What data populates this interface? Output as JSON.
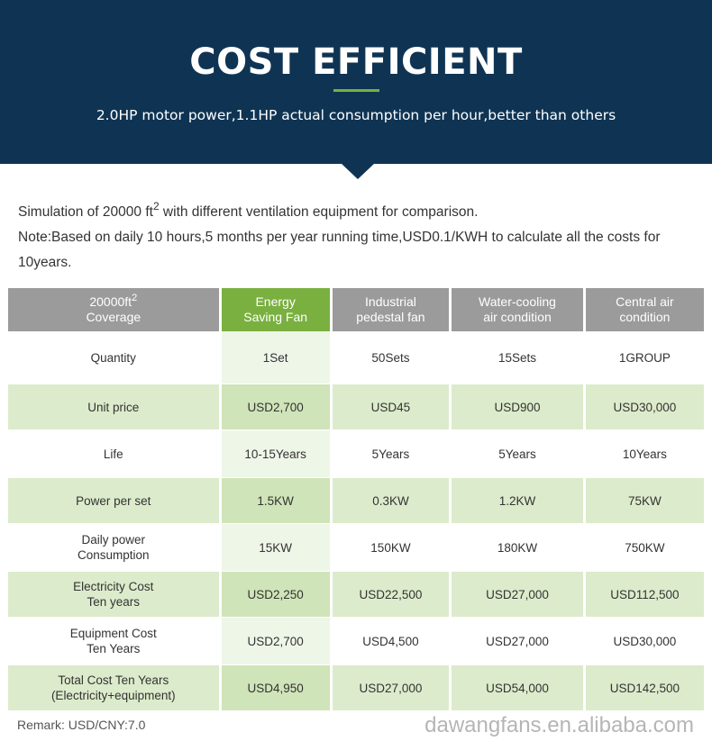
{
  "header": {
    "title": "COST EFFICIENT",
    "subtitle": "2.0HP motor power,1.1HP actual consumption per hour,better than others"
  },
  "intro": {
    "line1_pre": "Simulation of 20000 ft",
    "line1_sup": "2",
    "line1_post": " with different ventilation equipment for comparison.",
    "note": "Note:Based on daily 10 hours,5 months per year running time,USD0.1/KWH to calculate all the costs for 10years."
  },
  "table": {
    "headers": [
      {
        "l1": "20000ft",
        "sup": "2",
        "l2": "Coverage"
      },
      {
        "l1": "Energy",
        "l2": "Saving Fan"
      },
      {
        "l1": "Industrial",
        "l2": "pedestal fan"
      },
      {
        "l1": "Water-cooling",
        "l2": "air condition"
      },
      {
        "l1": "Central air",
        "l2": "condition"
      }
    ],
    "rows": [
      {
        "label1": "Quantity",
        "label2": "",
        "values": [
          "1Set",
          "50Sets",
          "15Sets",
          "1GROUP"
        ]
      },
      {
        "label1": "Unit price",
        "label2": "",
        "values": [
          "USD2,700",
          "USD45",
          "USD900",
          "USD30,000"
        ]
      },
      {
        "label1": "Life",
        "label2": "",
        "values": [
          "10-15Years",
          "5Years",
          "5Years",
          "10Years"
        ]
      },
      {
        "label1": "Power per set",
        "label2": "",
        "values": [
          "1.5KW",
          "0.3KW",
          "1.2KW",
          "75KW"
        ]
      },
      {
        "label1": "Daily power",
        "label2": "Consumption",
        "values": [
          "15KW",
          "150KW",
          "180KW",
          "750KW"
        ]
      },
      {
        "label1": "Electricity Cost",
        "label2": "Ten years",
        "values": [
          "USD2,250",
          "USD22,500",
          "USD27,000",
          "USD112,500"
        ]
      },
      {
        "label1": "Equipment Cost",
        "label2": "Ten Years",
        "values": [
          "USD2,700",
          "USD4,500",
          "USD27,000",
          "USD30,000"
        ]
      },
      {
        "label1": "Total Cost Ten Years",
        "label2": "(Electricity+equipment)",
        "values": [
          "USD4,950",
          "USD27,000",
          "USD54,000",
          "USD142,500"
        ]
      }
    ]
  },
  "watermark": "dawangfans.en.alibaba.com",
  "remark": "Remark: USD/CNY:7.0",
  "colors": {
    "navy": "#0f3453",
    "green": "#79b03f",
    "gray": "#9b9b9b",
    "row_green": "#dcebcb"
  }
}
